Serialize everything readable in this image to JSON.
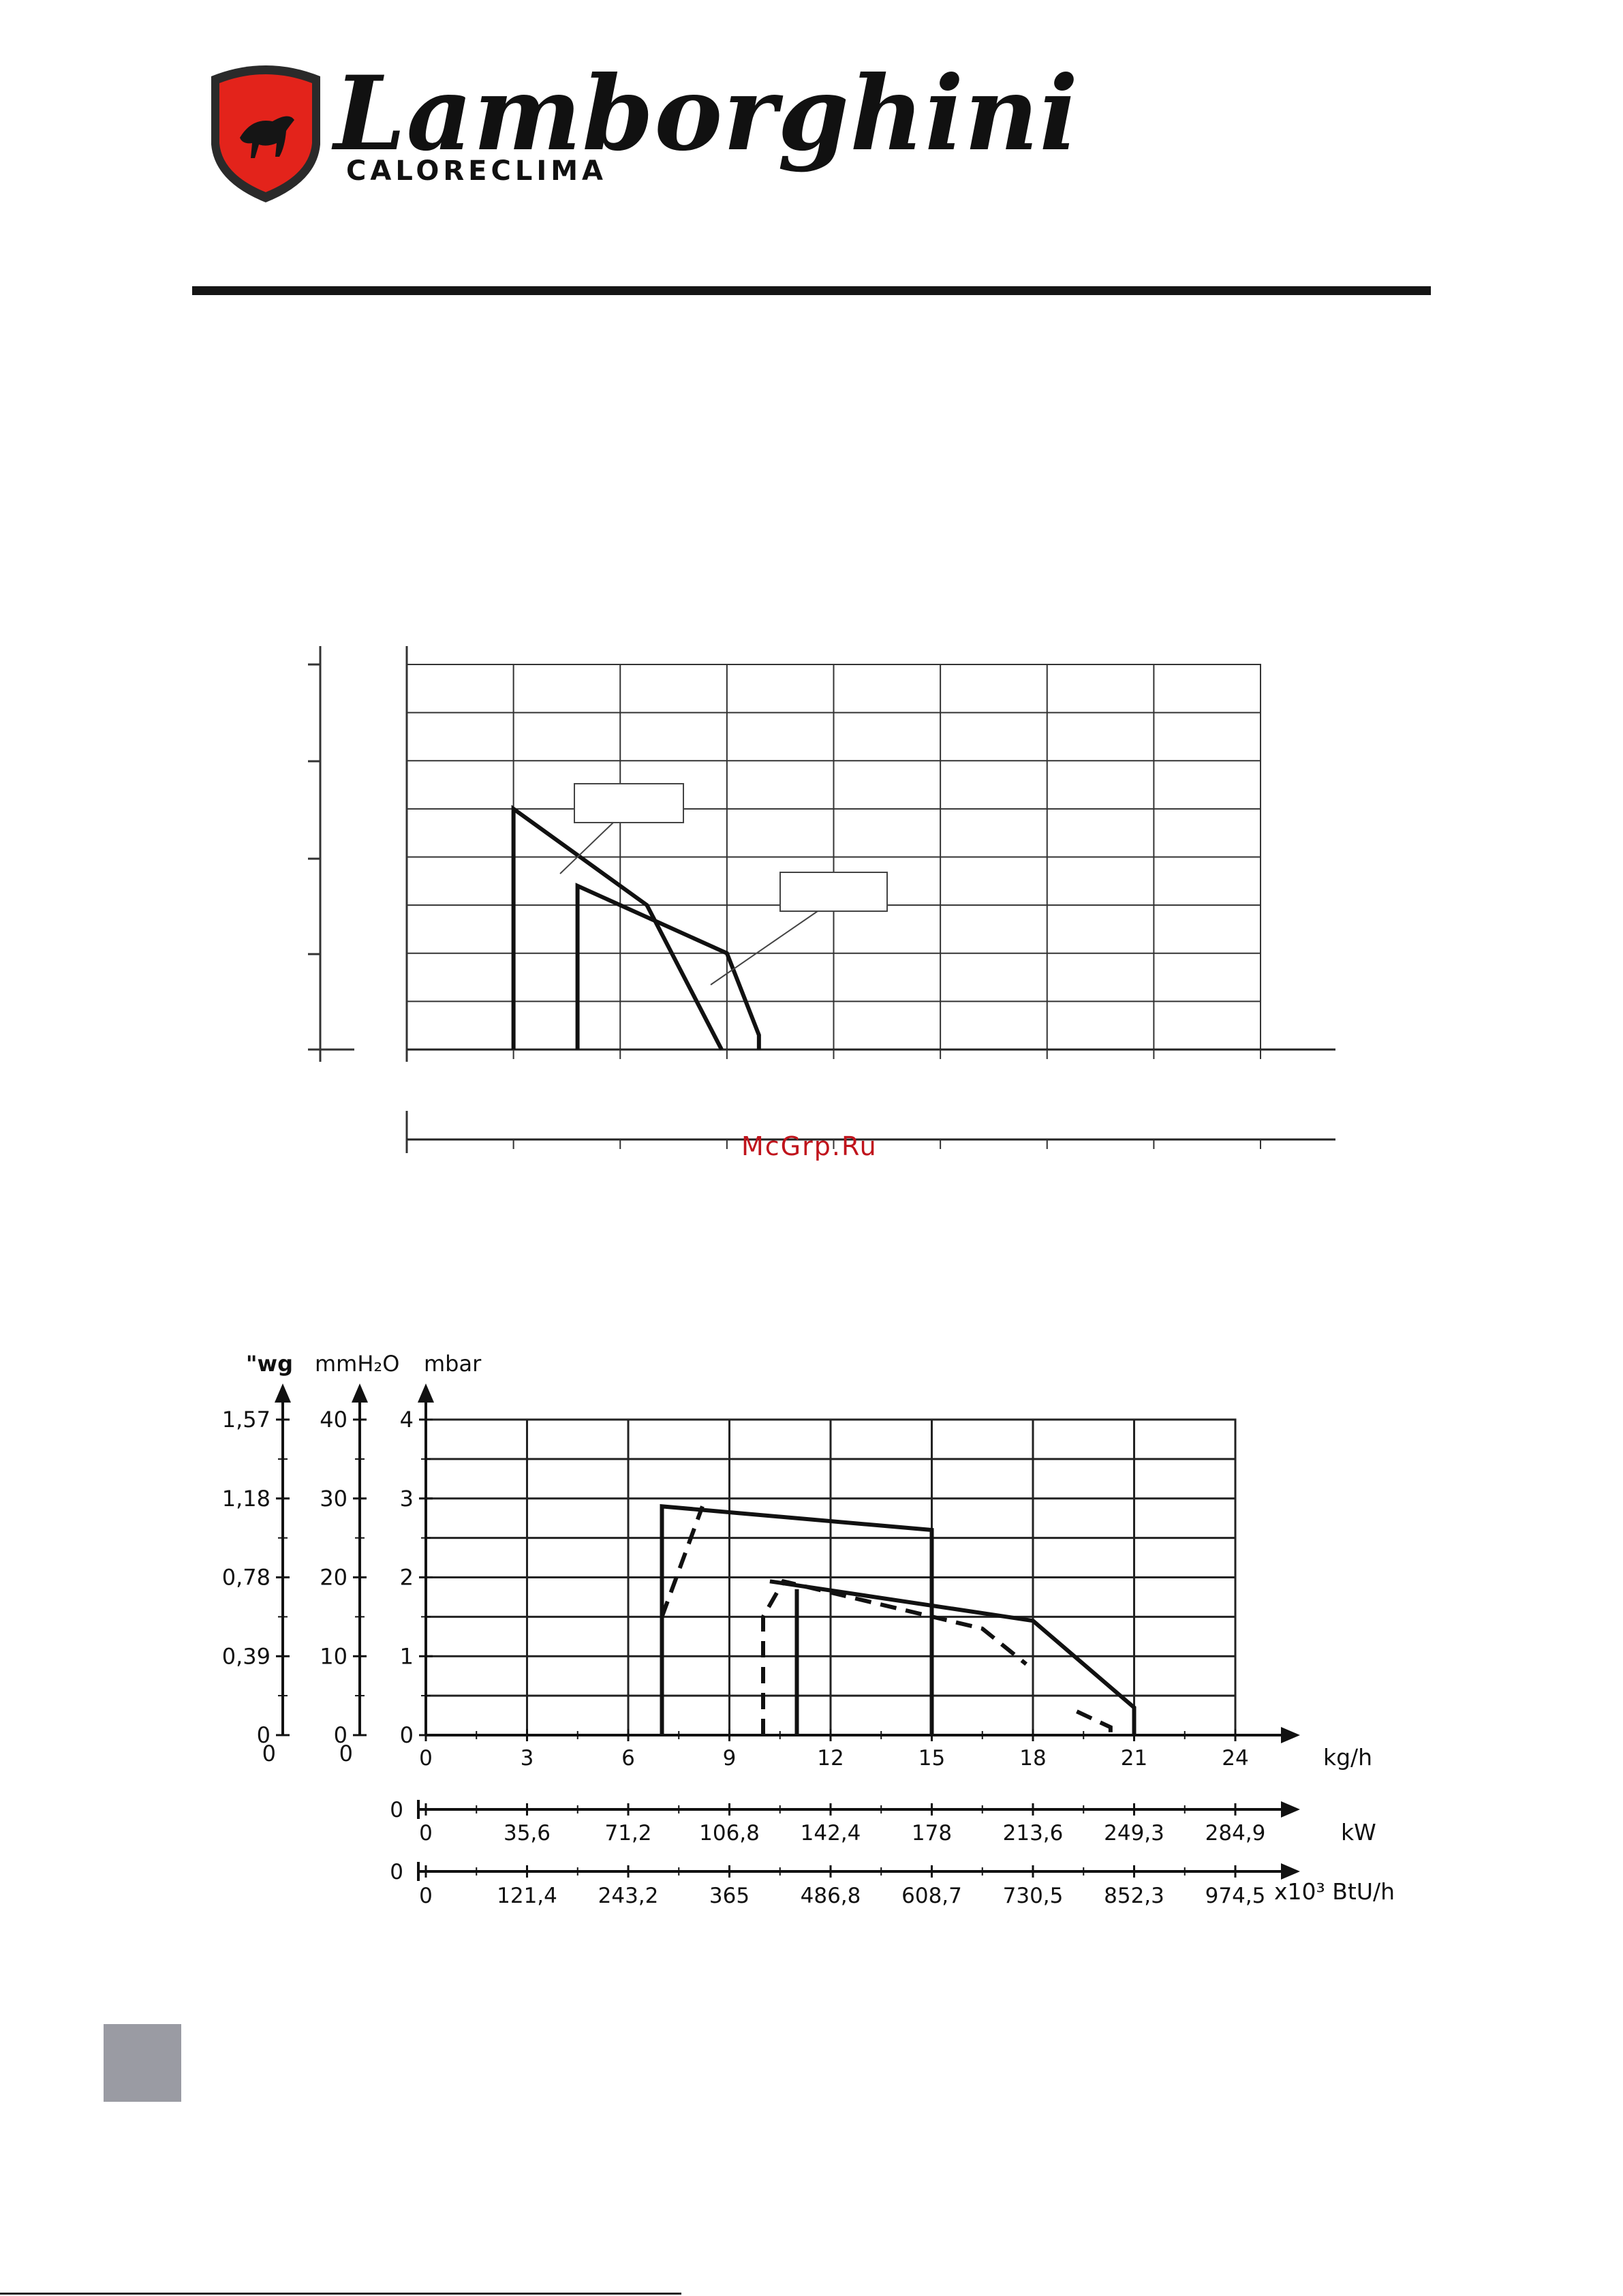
{
  "brand": {
    "name": "Lamborghini",
    "sub": "CALORECLIMA",
    "primary_color": "#e3231b",
    "logo_icon": "bull-shield-icon"
  },
  "watermark": {
    "text": "McGrp.Ru",
    "color": "#c0141c"
  },
  "chart_data": [
    {
      "type": "line",
      "title": "",
      "xlabel": "",
      "ylabel": "",
      "grid": true,
      "axis_labels_visible": false,
      "series": [
        {
          "line": "solid",
          "x": [
            1,
            1,
            2.25,
            2.95
          ],
          "y": [
            0,
            5,
            3,
            0
          ]
        },
        {
          "line": "solid",
          "x": [
            1.6,
            1.6,
            3.0,
            3.3,
            3.3
          ],
          "y": [
            0,
            3.4,
            2.0,
            0.3,
            0
          ]
        }
      ],
      "callout_boxes": 2
    },
    {
      "type": "line",
      "title": "",
      "grid": true,
      "legend": false,
      "y_axes": [
        {
          "label": "\"wg",
          "ticks": [
            "1,57",
            "1,18",
            "0,78",
            "0,39",
            "0"
          ],
          "zero": "0"
        },
        {
          "label": "mmH₂O",
          "ticks": [
            "40",
            "30",
            "20",
            "10",
            "0"
          ],
          "zero": "0"
        },
        {
          "label": "mbar",
          "ticks": [
            "4",
            "3",
            "2",
            "1",
            "0"
          ]
        }
      ],
      "x_axes": [
        {
          "unit": "kg/h",
          "zero": "0",
          "ticks": [
            "0",
            "3",
            "6",
            "9",
            "12",
            "15",
            "18",
            "21",
            "24"
          ]
        },
        {
          "unit": "kW",
          "zero": "0",
          "ticks": [
            "0",
            "35,6",
            "71,2",
            "106,8",
            "142,4",
            "178",
            "213,6",
            "249,3",
            "284,9"
          ]
        },
        {
          "unit": "x10³ BtU/h",
          "zero": "0",
          "ticks": [
            "0",
            "121,4",
            "243,2",
            "365",
            "486,8",
            "608,7",
            "730,5",
            "852,3",
            "974,5"
          ]
        }
      ],
      "xlim": [
        0,
        24
      ],
      "ylim": [
        0,
        4
      ],
      "series": [
        {
          "line": "solid",
          "x": [
            7.0,
            7.0,
            15.0,
            15.0
          ],
          "y": [
            0,
            2.9,
            2.6,
            0
          ]
        },
        {
          "line": "dashed",
          "x": [
            7.0,
            8.2
          ],
          "y": [
            1.5,
            2.9
          ]
        },
        {
          "line": "solid",
          "x": [
            11.0,
            11.0
          ],
          "y": [
            0,
            1.85
          ]
        },
        {
          "line": "solid",
          "x": [
            10.2,
            18.0,
            21.0,
            21.0
          ],
          "y": [
            1.95,
            1.45,
            0.35,
            0
          ]
        },
        {
          "line": "dashed",
          "x": [
            10.0,
            10.0,
            10.6,
            16.5,
            17.8
          ],
          "y": [
            0,
            1.5,
            1.95,
            1.35,
            0.9
          ]
        },
        {
          "line": "dashed",
          "x": [
            19.3,
            20.3,
            20.3
          ],
          "y": [
            0.3,
            0.1,
            0
          ]
        }
      ]
    }
  ]
}
